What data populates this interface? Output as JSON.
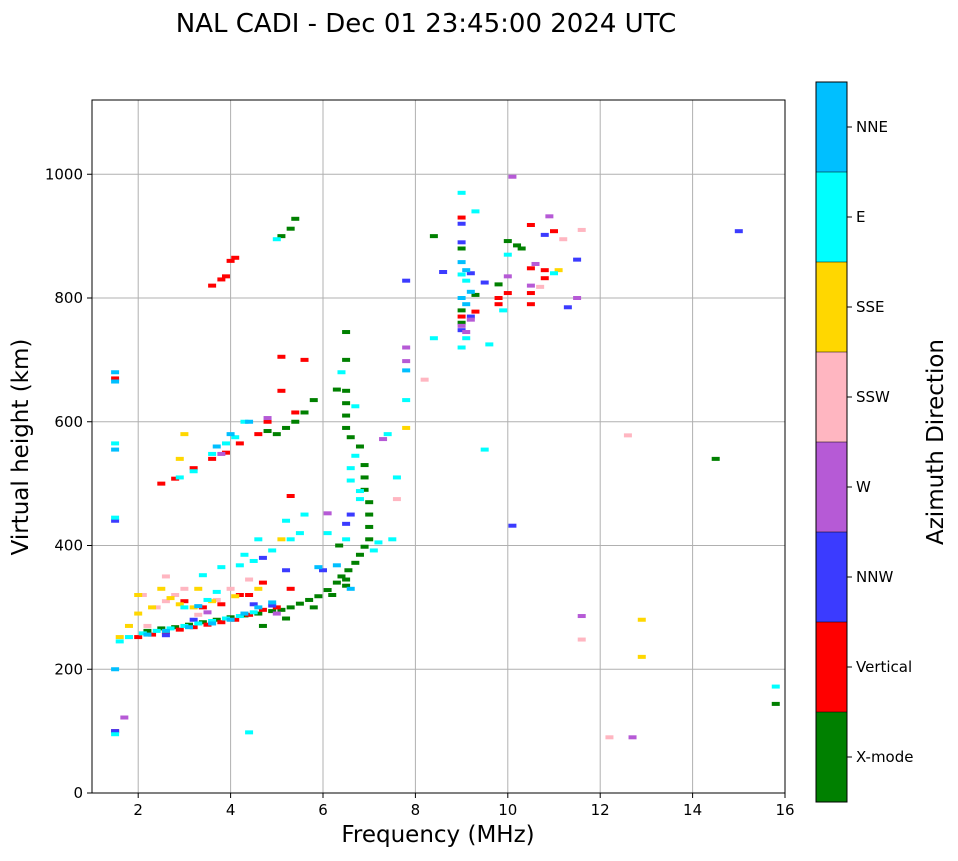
{
  "chart_data": {
    "type": "scatter",
    "title": "NAL CADI - Dec 01 23:45:00 2024 UTC",
    "xlabel": "Frequency (MHz)",
    "ylabel": "Virtual height (km)",
    "xlim": [
      1,
      16
    ],
    "ylim": [
      0,
      1120
    ],
    "xticks": [
      2,
      4,
      6,
      8,
      10,
      12,
      14,
      16
    ],
    "yticks": [
      0,
      200,
      400,
      600,
      800,
      1000
    ],
    "grid": true,
    "colorbar": {
      "label": "Azimuth Direction",
      "categories": [
        {
          "name": "X-mode",
          "color": "#008000"
        },
        {
          "name": "Vertical",
          "color": "#ff0000"
        },
        {
          "name": "NNW",
          "color": "#3b3bff"
        },
        {
          "name": "W",
          "color": "#b65ad6"
        },
        {
          "name": "SSW",
          "color": "#ffb6c1"
        },
        {
          "name": "SSE",
          "color": "#ffd700"
        },
        {
          "name": "E",
          "color": "#00ffff"
        },
        {
          "name": "NNE",
          "color": "#00bfff"
        }
      ]
    },
    "series": [
      {
        "name": "X-mode",
        "points": [
          [
            2.2,
            262
          ],
          [
            2.5,
            266
          ],
          [
            2.8,
            268
          ],
          [
            3.1,
            272
          ],
          [
            3.4,
            276
          ],
          [
            3.7,
            280
          ],
          [
            4.0,
            284
          ],
          [
            4.3,
            287
          ],
          [
            4.6,
            290
          ],
          [
            4.9,
            294
          ],
          [
            5.1,
            296
          ],
          [
            5.3,
            300
          ],
          [
            5.5,
            306
          ],
          [
            5.7,
            312
          ],
          [
            5.9,
            318
          ],
          [
            6.1,
            328
          ],
          [
            6.3,
            340
          ],
          [
            6.4,
            350
          ],
          [
            6.55,
            360
          ],
          [
            6.7,
            372
          ],
          [
            6.8,
            385
          ],
          [
            6.9,
            398
          ],
          [
            7.0,
            410
          ],
          [
            7.0,
            430
          ],
          [
            7.0,
            450
          ],
          [
            7.0,
            470
          ],
          [
            6.9,
            490
          ],
          [
            6.9,
            510
          ],
          [
            6.9,
            530
          ],
          [
            6.8,
            560
          ],
          [
            6.6,
            575
          ],
          [
            6.5,
            590
          ],
          [
            6.5,
            610
          ],
          [
            6.5,
            630
          ],
          [
            6.5,
            650
          ],
          [
            6.5,
            700
          ],
          [
            6.5,
            745
          ],
          [
            6.3,
            652
          ],
          [
            5.8,
            635
          ],
          [
            5.6,
            615
          ],
          [
            5.4,
            600
          ],
          [
            5.2,
            590
          ],
          [
            5.0,
            580
          ],
          [
            4.8,
            585
          ],
          [
            5.1,
            900
          ],
          [
            5.3,
            912
          ],
          [
            5.4,
            928
          ],
          [
            8.4,
            900
          ],
          [
            9.0,
            880
          ],
          [
            9.0,
            780
          ],
          [
            9.0,
            760
          ],
          [
            9.3,
            805
          ],
          [
            9.8,
            822
          ],
          [
            10.0,
            892
          ],
          [
            10.2,
            885
          ],
          [
            10.3,
            880
          ],
          [
            14.5,
            540
          ],
          [
            15.8,
            144
          ],
          [
            4.7,
            270
          ],
          [
            5.2,
            282
          ],
          [
            5.8,
            300
          ],
          [
            6.2,
            320
          ],
          [
            6.5,
            335
          ],
          [
            6.5,
            345
          ],
          [
            6.35,
            400
          ]
        ]
      },
      {
        "name": "Vertical",
        "points": [
          [
            2.0,
            252
          ],
          [
            2.3,
            256
          ],
          [
            2.6,
            260
          ],
          [
            2.9,
            264
          ],
          [
            3.2,
            268
          ],
          [
            3.5,
            272
          ],
          [
            3.8,
            276
          ],
          [
            4.1,
            280
          ],
          [
            4.4,
            288
          ],
          [
            4.7,
            296
          ],
          [
            5.0,
            300
          ],
          [
            4.4,
            320
          ],
          [
            4.7,
            340
          ],
          [
            5.3,
            330
          ],
          [
            2.5,
            500
          ],
          [
            2.8,
            508
          ],
          [
            3.2,
            525
          ],
          [
            3.6,
            540
          ],
          [
            3.9,
            550
          ],
          [
            4.2,
            565
          ],
          [
            4.6,
            580
          ],
          [
            4.8,
            600
          ],
          [
            1.5,
            670
          ],
          [
            1.5,
            100
          ],
          [
            3.6,
            820
          ],
          [
            3.9,
            835
          ],
          [
            4.0,
            860
          ],
          [
            4.1,
            865
          ],
          [
            3.8,
            830
          ],
          [
            5.1,
            705
          ],
          [
            5.6,
            700
          ],
          [
            9.0,
            930
          ],
          [
            9.0,
            770
          ],
          [
            9.3,
            778
          ],
          [
            9.8,
            800
          ],
          [
            9.8,
            790
          ],
          [
            10.0,
            808
          ],
          [
            10.5,
            790
          ],
          [
            10.5,
            808
          ],
          [
            10.5,
            848
          ],
          [
            10.8,
            832
          ],
          [
            10.8,
            845
          ],
          [
            10.5,
            918
          ],
          [
            11.0,
            908
          ],
          [
            5.1,
            650
          ],
          [
            5.4,
            615
          ],
          [
            3.0,
            310
          ],
          [
            3.4,
            300
          ],
          [
            3.8,
            305
          ],
          [
            4.2,
            320
          ],
          [
            5.3,
            480
          ]
        ]
      },
      {
        "name": "NNW",
        "points": [
          [
            1.5,
            100
          ],
          [
            1.5,
            440
          ],
          [
            2.6,
            255
          ],
          [
            3.2,
            280
          ],
          [
            4.5,
            305
          ],
          [
            4.9,
            303
          ],
          [
            6.5,
            435
          ],
          [
            6.6,
            450
          ],
          [
            7.8,
            828
          ],
          [
            8.6,
            842
          ],
          [
            9.0,
            920
          ],
          [
            9.0,
            890
          ],
          [
            9.2,
            840
          ],
          [
            9.0,
            748
          ],
          [
            9.2,
            770
          ],
          [
            9.5,
            825
          ],
          [
            10.1,
            432
          ],
          [
            10.8,
            902
          ],
          [
            11.5,
            862
          ],
          [
            11.3,
            785
          ],
          [
            15.0,
            908
          ],
          [
            6.0,
            360
          ],
          [
            5.2,
            360
          ],
          [
            4.7,
            380
          ]
        ]
      },
      {
        "name": "W",
        "points": [
          [
            1.7,
            122
          ],
          [
            3.8,
            548
          ],
          [
            4.8,
            606
          ],
          [
            6.1,
            452
          ],
          [
            7.3,
            572
          ],
          [
            7.8,
            698
          ],
          [
            7.8,
            720
          ],
          [
            9.0,
            755
          ],
          [
            9.1,
            745
          ],
          [
            10.0,
            835
          ],
          [
            10.1,
            996
          ],
          [
            10.9,
            932
          ],
          [
            10.6,
            855
          ],
          [
            10.5,
            820
          ],
          [
            11.5,
            800
          ],
          [
            11.6,
            286
          ],
          [
            12.7,
            90
          ],
          [
            9.2,
            765
          ],
          [
            5.0,
            290
          ],
          [
            3.5,
            292
          ]
        ]
      },
      {
        "name": "SSW",
        "points": [
          [
            1.8,
            252
          ],
          [
            2.2,
            270
          ],
          [
            2.4,
            300
          ],
          [
            2.6,
            310
          ],
          [
            2.8,
            320
          ],
          [
            3.0,
            330
          ],
          [
            3.3,
            288
          ],
          [
            3.7,
            312
          ],
          [
            4.0,
            330
          ],
          [
            4.4,
            345
          ],
          [
            2.6,
            350
          ],
          [
            2.1,
            320
          ],
          [
            7.6,
            475
          ],
          [
            8.2,
            668
          ],
          [
            11.2,
            895
          ],
          [
            11.6,
            910
          ],
          [
            12.6,
            578
          ],
          [
            12.2,
            90
          ],
          [
            11.6,
            248
          ],
          [
            10.7,
            818
          ]
        ]
      },
      {
        "name": "SSE",
        "points": [
          [
            1.6,
            252
          ],
          [
            1.8,
            270
          ],
          [
            2.0,
            290
          ],
          [
            2.3,
            300
          ],
          [
            2.7,
            315
          ],
          [
            2.9,
            305
          ],
          [
            3.2,
            300
          ],
          [
            3.6,
            310
          ],
          [
            4.1,
            318
          ],
          [
            4.6,
            330
          ],
          [
            5.1,
            410
          ],
          [
            2.9,
            540
          ],
          [
            3.0,
            580
          ],
          [
            7.8,
            590
          ],
          [
            11.1,
            845
          ],
          [
            12.9,
            280
          ],
          [
            12.9,
            220
          ],
          [
            2.5,
            330
          ],
          [
            3.3,
            330
          ],
          [
            2.0,
            320
          ]
        ]
      },
      {
        "name": "E",
        "points": [
          [
            1.6,
            245
          ],
          [
            1.8,
            252
          ],
          [
            2.1,
            258
          ],
          [
            2.4,
            262
          ],
          [
            2.7,
            266
          ],
          [
            3.0,
            270
          ],
          [
            3.3,
            274
          ],
          [
            3.6,
            278
          ],
          [
            3.9,
            282
          ],
          [
            4.2,
            286
          ],
          [
            4.5,
            292
          ],
          [
            3.0,
            300
          ],
          [
            3.5,
            312
          ],
          [
            3.7,
            325
          ],
          [
            3.4,
            352
          ],
          [
            3.8,
            365
          ],
          [
            4.2,
            368
          ],
          [
            4.5,
            375
          ],
          [
            4.9,
            392
          ],
          [
            5.3,
            410
          ],
          [
            5.5,
            420
          ],
          [
            5.2,
            440
          ],
          [
            4.3,
            385
          ],
          [
            2.9,
            510
          ],
          [
            3.2,
            520
          ],
          [
            3.6,
            548
          ],
          [
            3.9,
            565
          ],
          [
            4.1,
            575
          ],
          [
            4.3,
            600
          ],
          [
            1.5,
            565
          ],
          [
            1.5,
            445
          ],
          [
            1.5,
            95
          ],
          [
            4.4,
            98
          ],
          [
            5.0,
            895
          ],
          [
            6.6,
            525
          ],
          [
            6.7,
            545
          ],
          [
            6.6,
            505
          ],
          [
            6.8,
            488
          ],
          [
            7.1,
            392
          ],
          [
            7.2,
            405
          ],
          [
            7.5,
            410
          ],
          [
            7.4,
            580
          ],
          [
            7.6,
            510
          ],
          [
            7.8,
            635
          ],
          [
            8.4,
            735
          ],
          [
            9.0,
            970
          ],
          [
            9.3,
            940
          ],
          [
            9.0,
            838
          ],
          [
            9.1,
            828
          ],
          [
            9.0,
            720
          ],
          [
            9.1,
            735
          ],
          [
            9.5,
            555
          ],
          [
            9.6,
            725
          ],
          [
            9.9,
            780
          ],
          [
            10.0,
            870
          ],
          [
            11.0,
            840
          ],
          [
            15.8,
            172
          ],
          [
            6.5,
            410
          ],
          [
            6.8,
            475
          ],
          [
            6.1,
            420
          ],
          [
            6.7,
            625
          ],
          [
            6.4,
            680
          ],
          [
            5.6,
            450
          ],
          [
            4.6,
            410
          ]
        ]
      },
      {
        "name": "NNE",
        "points": [
          [
            1.5,
            680
          ],
          [
            1.5,
            665
          ],
          [
            1.5,
            555
          ],
          [
            1.5,
            200
          ],
          [
            2.2,
            256
          ],
          [
            2.6,
            262
          ],
          [
            3.1,
            268
          ],
          [
            3.6,
            274
          ],
          [
            4.0,
            280
          ],
          [
            4.3,
            290
          ],
          [
            4.6,
            300
          ],
          [
            4.9,
            308
          ],
          [
            4.0,
            580
          ],
          [
            3.7,
            560
          ],
          [
            4.4,
            600
          ],
          [
            9.0,
            858
          ],
          [
            9.1,
            845
          ],
          [
            9.0,
            800
          ],
          [
            9.1,
            790
          ],
          [
            9.2,
            810
          ],
          [
            7.8,
            683
          ],
          [
            6.3,
            368
          ],
          [
            6.6,
            330
          ],
          [
            5.9,
            365
          ],
          [
            3.3,
            302
          ]
        ]
      }
    ]
  }
}
